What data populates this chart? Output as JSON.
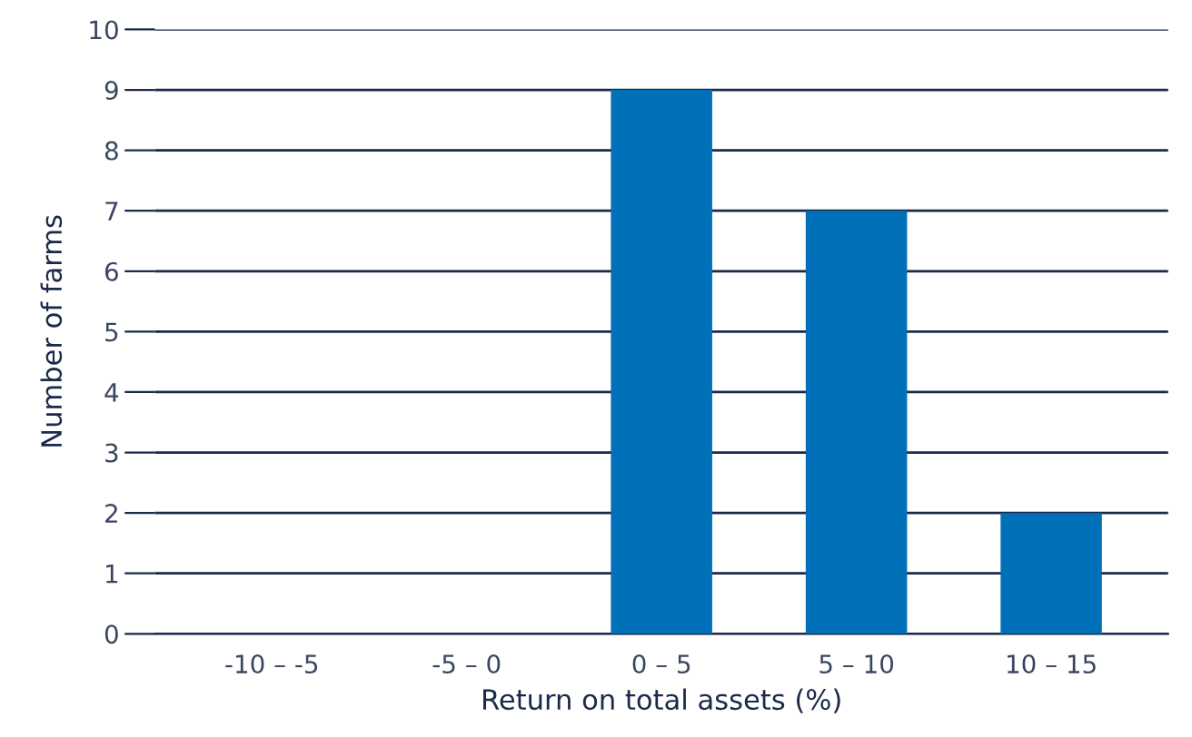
{
  "chart_data": {
    "type": "bar",
    "xlabel": "Return on total assets (%)",
    "ylabel": "Number of farms",
    "categories": [
      "-10 – -5",
      "-5 – 0",
      "0 – 5",
      "5 – 10",
      "10 – 15"
    ],
    "values": [
      0,
      0,
      9,
      7,
      2
    ],
    "color": "#0070b8",
    "ylim": [
      0,
      10
    ],
    "yticks": [
      0,
      1,
      2,
      3,
      4,
      5,
      6,
      7,
      8,
      9,
      10
    ],
    "grid": "y"
  }
}
